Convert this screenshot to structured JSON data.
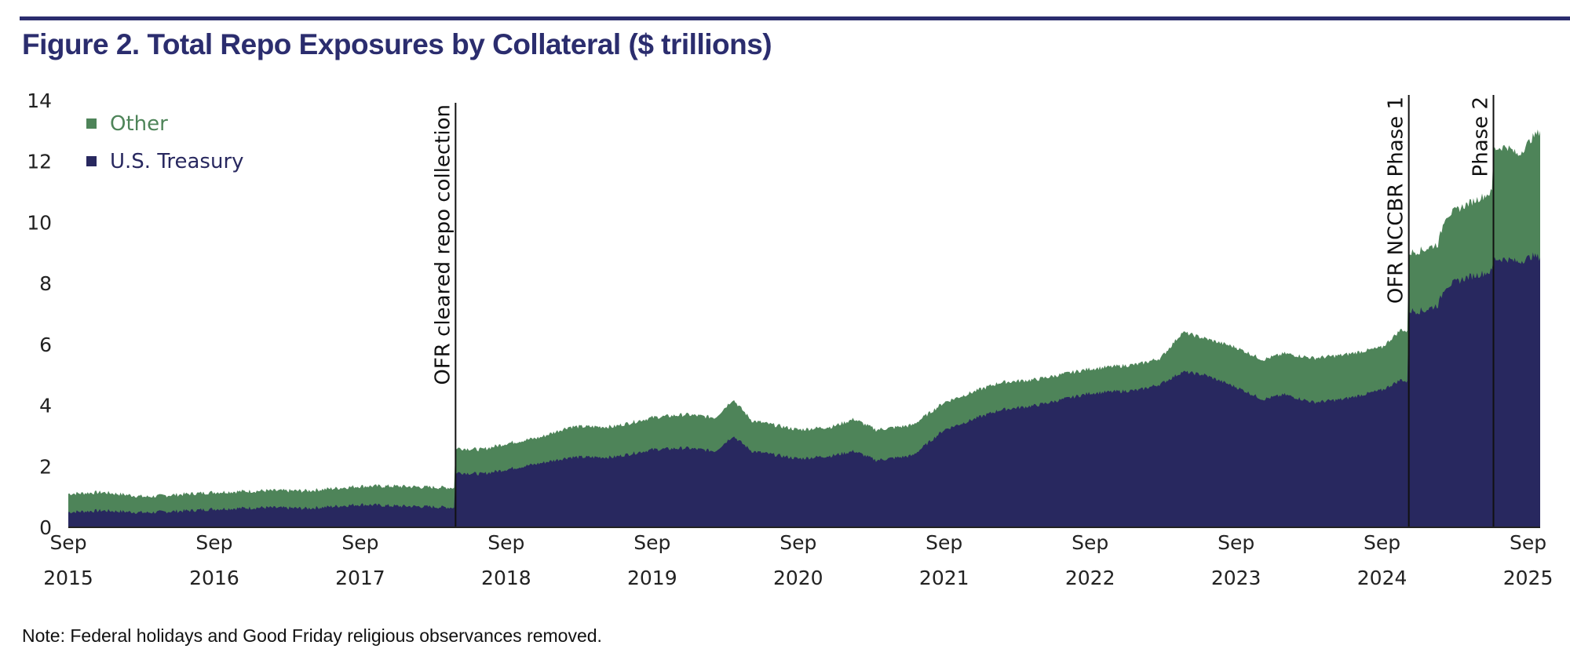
{
  "title": "Figure 2. Total Repo Exposures by Collateral ($ trillions)",
  "note": "Note: Federal holidays and Good Friday religious observances removed.",
  "colors": {
    "other": "#4e8459",
    "treasury": "#28285f",
    "title": "#2b2d6e"
  },
  "chart_data": {
    "type": "area",
    "stacked": true,
    "title": "Figure 2. Total Repo Exposures by Collateral ($ trillions)",
    "xlabel": "",
    "ylabel": "$ trillions",
    "ylim": [
      0,
      14
    ],
    "yticks": [
      "0",
      "2",
      "4",
      "6",
      "8",
      "10",
      "12",
      "14"
    ],
    "xticks": [
      {
        "month": "Sep",
        "year": "2015",
        "t": 2015.667
      },
      {
        "month": "Sep",
        "year": "2016",
        "t": 2016.667
      },
      {
        "month": "Sep",
        "year": "2017",
        "t": 2017.667
      },
      {
        "month": "Sep",
        "year": "2018",
        "t": 2018.667
      },
      {
        "month": "Sep",
        "year": "2019",
        "t": 2019.667
      },
      {
        "month": "Sep",
        "year": "2020",
        "t": 2020.667
      },
      {
        "month": "Sep",
        "year": "2021",
        "t": 2021.667
      },
      {
        "month": "Sep",
        "year": "2022",
        "t": 2022.667
      },
      {
        "month": "Sep",
        "year": "2023",
        "t": 2023.667
      },
      {
        "month": "Sep",
        "year": "2024",
        "t": 2024.667
      },
      {
        "month": "Sep",
        "year": "2025",
        "t": 2025.667
      }
    ],
    "xlim": [
      2015.667,
      2025.75
    ],
    "legend": {
      "placement": "top-left",
      "entries": [
        "Other",
        "U.S. Treasury"
      ]
    },
    "annotations": [
      {
        "label": "OFR cleared repo collection",
        "t": 2018.32
      },
      {
        "label": "OFR NCCBR Phase 1",
        "t": 2024.85
      },
      {
        "label": "Phase 2",
        "t": 2025.43
      }
    ],
    "series_points": {
      "columns": [
        "t",
        "treasury",
        "total"
      ],
      "rows": [
        [
          2015.667,
          0.5,
          1.1
        ],
        [
          2015.9,
          0.55,
          1.15
        ],
        [
          2016.2,
          0.48,
          1.0
        ],
        [
          2016.5,
          0.55,
          1.1
        ],
        [
          2016.667,
          0.6,
          1.15
        ],
        [
          2017.0,
          0.65,
          1.2
        ],
        [
          2017.3,
          0.62,
          1.2
        ],
        [
          2017.667,
          0.75,
          1.35
        ],
        [
          2017.9,
          0.7,
          1.35
        ],
        [
          2018.1,
          0.68,
          1.32
        ],
        [
          2018.31,
          0.65,
          1.3
        ],
        [
          2018.32,
          1.8,
          2.6
        ],
        [
          2018.5,
          1.75,
          2.55
        ],
        [
          2018.667,
          1.9,
          2.75
        ],
        [
          2018.9,
          2.1,
          2.95
        ],
        [
          2019.1,
          2.3,
          3.3
        ],
        [
          2019.4,
          2.3,
          3.3
        ],
        [
          2019.667,
          2.55,
          3.6
        ],
        [
          2019.9,
          2.6,
          3.7
        ],
        [
          2020.1,
          2.5,
          3.6
        ],
        [
          2020.22,
          3.0,
          4.2
        ],
        [
          2020.35,
          2.5,
          3.5
        ],
        [
          2020.667,
          2.25,
          3.2
        ],
        [
          2020.9,
          2.35,
          3.3
        ],
        [
          2021.05,
          2.5,
          3.55
        ],
        [
          2021.2,
          2.2,
          3.2
        ],
        [
          2021.45,
          2.35,
          3.35
        ],
        [
          2021.667,
          3.2,
          4.1
        ],
        [
          2021.9,
          3.6,
          4.5
        ],
        [
          2022.05,
          3.85,
          4.75
        ],
        [
          2022.3,
          4.0,
          4.85
        ],
        [
          2022.667,
          4.4,
          5.2
        ],
        [
          2023.0,
          4.5,
          5.35
        ],
        [
          2023.15,
          4.7,
          5.55
        ],
        [
          2023.3,
          5.1,
          6.4
        ],
        [
          2023.45,
          5.0,
          6.2
        ],
        [
          2023.667,
          4.6,
          5.9
        ],
        [
          2023.85,
          4.2,
          5.5
        ],
        [
          2024.0,
          4.35,
          5.7
        ],
        [
          2024.2,
          4.1,
          5.55
        ],
        [
          2024.4,
          4.2,
          5.65
        ],
        [
          2024.667,
          4.5,
          5.9
        ],
        [
          2024.8,
          4.85,
          6.5
        ],
        [
          2024.84,
          4.75,
          6.4
        ],
        [
          2024.85,
          7.1,
          9.0
        ],
        [
          2024.95,
          7.1,
          9.1
        ],
        [
          2025.05,
          7.3,
          9.3
        ],
        [
          2025.1,
          7.9,
          10.2
        ],
        [
          2025.25,
          8.2,
          10.6
        ],
        [
          2025.42,
          8.4,
          11.0
        ],
        [
          2025.43,
          8.8,
          12.4
        ],
        [
          2025.52,
          8.8,
          12.5
        ],
        [
          2025.6,
          8.7,
          12.2
        ],
        [
          2025.7,
          8.9,
          12.8
        ],
        [
          2025.75,
          8.85,
          13.0
        ]
      ]
    }
  }
}
